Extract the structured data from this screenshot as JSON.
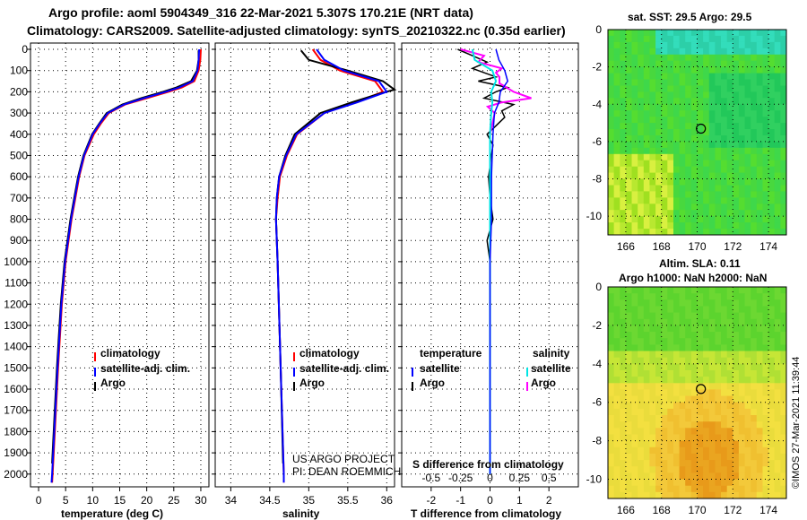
{
  "header": {
    "line1": "Argo profile: aoml 5904349_316 22-Mar-2021 5.307S 170.21E (NRT data)",
    "line2": "Climatology: CARS2009. Satellite-adjusted climatology: synTS_20210322.nc (0.35d earlier)"
  },
  "credit": {
    "project": "US ARGO PROJECT",
    "pi": "PI: DEAN ROEMMICH"
  },
  "timestamp": "©IMOS 27-Mar-2021 11:39:44",
  "colors": {
    "climatology": "#ff0000",
    "satellite": "#0000ff",
    "argo": "#000000",
    "sat_salinity": "#00e5e5",
    "argo_salinity": "#ff00ff"
  },
  "chart_data": [
    {
      "type": "line",
      "title": "",
      "xlabel": "temperature (deg C)",
      "ylabel": "",
      "xlim": [
        -1.5,
        31.5
      ],
      "ylim": [
        2060,
        0
      ],
      "xticks": [
        0,
        5,
        10,
        15,
        20,
        25,
        30
      ],
      "yticks": [
        0,
        100,
        200,
        300,
        400,
        500,
        600,
        700,
        800,
        900,
        1000,
        1100,
        1200,
        1300,
        1400,
        1500,
        1600,
        1700,
        1800,
        1900,
        2000
      ],
      "legend": [
        "climatology",
        "satellite-adj. clim.",
        "Argo"
      ],
      "series": [
        {
          "name": "climatology",
          "depth": [
            0,
            50,
            100,
            150,
            180,
            200,
            230,
            260,
            300,
            350,
            400,
            500,
            600,
            700,
            800,
            1000,
            1200,
            1500,
            2000,
            2040
          ],
          "values": [
            30,
            29.9,
            29.6,
            28.8,
            26.5,
            24,
            20,
            16,
            13,
            11.5,
            10.2,
            8.5,
            7.5,
            6.8,
            6.1,
            5.0,
            4.3,
            3.6,
            2.6,
            2.5
          ]
        },
        {
          "name": "satellite-adj. clim.",
          "depth": [
            0,
            50,
            100,
            150,
            180,
            200,
            230,
            260,
            300,
            350,
            400,
            500,
            600,
            700,
            800,
            1000,
            1200,
            1500,
            2000,
            2040
          ],
          "values": [
            29.7,
            29.6,
            29.4,
            28.5,
            26,
            23.5,
            19.5,
            15.8,
            12.8,
            11.3,
            10,
            8.4,
            7.4,
            6.7,
            6.0,
            4.9,
            4.2,
            3.5,
            2.5,
            2.4
          ]
        },
        {
          "name": "Argo",
          "depth": [
            5,
            50,
            100,
            150,
            180,
            200,
            230,
            260,
            300,
            350,
            400,
            500,
            600,
            700,
            800,
            1000,
            1200,
            1500,
            1950
          ],
          "values": [
            29.6,
            29.6,
            29.3,
            28.2,
            25.5,
            23,
            19,
            15.5,
            12.6,
            11.2,
            9.9,
            8.3,
            7.3,
            6.6,
            5.9,
            4.8,
            4.1,
            3.4,
            2.5
          ]
        }
      ]
    },
    {
      "type": "line",
      "title": "",
      "xlabel": "salinity",
      "ylabel": "",
      "xlim": [
        33.8,
        36.1
      ],
      "ylim": [
        2060,
        0
      ],
      "xticks": [
        34,
        34.5,
        35,
        35.5,
        36
      ],
      "legend": [
        "climatology",
        "satellite-adj. clim.",
        "Argo"
      ],
      "series": [
        {
          "name": "climatology",
          "depth": [
            0,
            50,
            100,
            150,
            200,
            250,
            300,
            400,
            500,
            600,
            700,
            800,
            1000,
            1500,
            2000,
            2040
          ],
          "values": [
            35.05,
            35.15,
            35.4,
            35.85,
            35.95,
            35.6,
            35.2,
            34.85,
            34.72,
            34.63,
            34.6,
            34.58,
            34.6,
            34.64,
            34.68,
            34.68
          ]
        },
        {
          "name": "satellite-adj. clim.",
          "depth": [
            0,
            50,
            100,
            150,
            200,
            250,
            300,
            400,
            500,
            600,
            700,
            800,
            1000,
            1500,
            2000,
            2040
          ],
          "values": [
            35.1,
            35.2,
            35.45,
            35.9,
            36.0,
            35.62,
            35.2,
            34.84,
            34.71,
            34.62,
            34.59,
            34.58,
            34.6,
            34.64,
            34.68,
            34.68
          ]
        },
        {
          "name": "Argo",
          "depth": [
            5,
            50,
            100,
            150,
            190,
            210,
            250,
            300,
            400,
            500,
            600,
            700,
            800,
            1000,
            1500,
            1950
          ],
          "values": [
            34.9,
            35.0,
            35.5,
            35.95,
            36.1,
            35.9,
            35.55,
            35.15,
            34.82,
            34.7,
            34.62,
            34.59,
            34.58,
            34.6,
            34.64,
            34.67
          ]
        }
      ]
    },
    {
      "type": "line",
      "title": "",
      "xlabel": "T difference from climatology",
      "xlabel2": "S difference from climatology",
      "ylabel": "",
      "xlim": [
        -3,
        3
      ],
      "x2lim": [
        -0.75,
        0.75
      ],
      "ylim": [
        2060,
        0
      ],
      "xticks": [
        -2,
        -1,
        0,
        1,
        2
      ],
      "x2ticks": [
        -0.5,
        -0.25,
        0,
        0.25,
        0.5
      ],
      "x2ticklabels": [
        "-0.5",
        "-0.25",
        "0",
        "0.25",
        "0.5"
      ],
      "legend_temperature": {
        "title": "temperature",
        "items": [
          "satellite",
          "Argo"
        ]
      },
      "legend_salinity": {
        "title": "salinity",
        "items": [
          "satellite",
          "Argo"
        ]
      },
      "series": [
        {
          "name": "temperature satellite",
          "depth": [
            0,
            50,
            100,
            150,
            200,
            250,
            300,
            400,
            600,
            800,
            1000,
            1500,
            2000
          ],
          "values": [
            0.2,
            0.3,
            0.5,
            0.6,
            0.35,
            0.3,
            0.15,
            0.1,
            0.05,
            0.05,
            0.0,
            0.0,
            0.0
          ]
        },
        {
          "name": "temperature Argo",
          "depth": [
            0,
            30,
            60,
            90,
            110,
            130,
            150,
            180,
            200,
            230,
            260,
            290,
            320,
            360,
            400,
            450,
            500,
            600,
            700,
            800,
            900,
            1000
          ],
          "values": [
            -1.1,
            -0.6,
            -0.1,
            -0.6,
            -0.2,
            0.2,
            -0.4,
            0.6,
            0.2,
            -0.2,
            0.8,
            0.4,
            0.5,
            0.2,
            -0.1,
            0.1,
            0.05,
            -0.05,
            0.0,
            0.1,
            -0.1,
            0.0
          ]
        },
        {
          "name": "salinity satellite",
          "depth": [
            0,
            50,
            100,
            150,
            200,
            250,
            300,
            400,
            600,
            800,
            1000,
            1500,
            2000
          ],
          "values": [
            -0.15,
            -0.13,
            0.02,
            0.05,
            0.01,
            0.02,
            0.01,
            0.0,
            0.0,
            0.0,
            0.0,
            0.0,
            0.0
          ]
        },
        {
          "name": "salinity Argo",
          "depth": [
            0,
            30,
            60,
            90,
            110,
            130,
            160,
            200,
            230,
            250,
            270,
            300,
            350,
            400,
            500,
            600,
            800,
            1000
          ],
          "values": [
            -0.25,
            -0.05,
            -0.1,
            0.1,
            0.05,
            0.08,
            0.08,
            0.2,
            0.35,
            0.1,
            -0.02,
            0.04,
            0.02,
            0.0,
            0.0,
            0.01,
            0.0,
            0.0
          ]
        }
      ]
    },
    {
      "type": "heatmap",
      "title": "sat. SST: 29.5  Argo: 29.5",
      "xlim": [
        165,
        175
      ],
      "ylim": [
        -11,
        0
      ],
      "xticks": [
        166,
        168,
        170,
        172,
        174
      ],
      "yticks": [
        0,
        -2,
        -4,
        -6,
        -8,
        -10
      ],
      "marker": {
        "lon": 170.21,
        "lat": -5.307
      }
    },
    {
      "type": "heatmap",
      "title": "Altim. SLA: 0.11",
      "subtitle": "Argo h1000: NaN  h2000: NaN",
      "xlim": [
        165,
        175
      ],
      "ylim": [
        -11,
        0
      ],
      "xticks": [
        166,
        168,
        170,
        172,
        174
      ],
      "yticks": [
        0,
        -2,
        -4,
        -6,
        -8,
        -10
      ],
      "marker": {
        "lon": 170.21,
        "lat": -5.307
      }
    }
  ]
}
